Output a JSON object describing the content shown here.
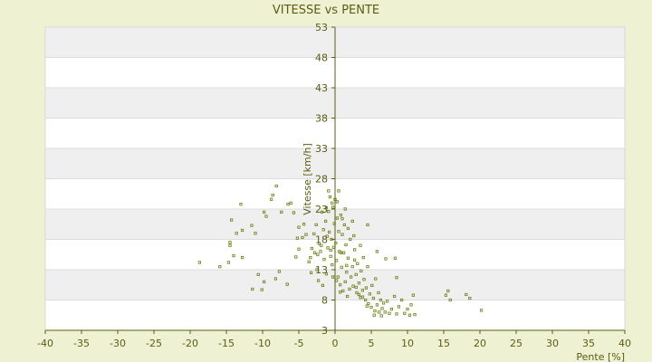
{
  "chart_data": {
    "type": "scatter",
    "title": "VITESSE vs PENTE",
    "xlabel": "Pente [%]",
    "ylabel": "Vitesse [km/h]",
    "xlim": [
      -40,
      40
    ],
    "ylim": [
      3,
      53
    ],
    "xticks": [
      -40,
      -35,
      -30,
      -25,
      -20,
      -15,
      -10,
      -5,
      0,
      5,
      10,
      15,
      20,
      25,
      30,
      35,
      40
    ],
    "yticks": [
      3,
      8,
      13,
      18,
      23,
      28,
      33,
      38,
      43,
      48,
      53
    ],
    "grid": "horizontal",
    "legend": "none",
    "colors": {
      "background": "#eef2d2",
      "band_light": "#ffffff",
      "band_dark": "#efefef",
      "marker": "#6b7d10",
      "axis": "#5c5c12"
    },
    "series": [
      {
        "points": [
          [
            -18.7,
            14.2
          ],
          [
            -15.9,
            13.5
          ],
          [
            -14.5,
            17.5
          ],
          [
            -14.7,
            14.2
          ],
          [
            -14.5,
            17.0
          ],
          [
            -14.3,
            21.2
          ],
          [
            -14.0,
            15.3
          ],
          [
            -13.6,
            19.0
          ],
          [
            -13.0,
            23.8
          ],
          [
            -12.8,
            15.0
          ],
          [
            -12.8,
            19.5
          ],
          [
            -11.5,
            20.3
          ],
          [
            -11.4,
            9.8
          ],
          [
            -11.0,
            19.0
          ],
          [
            -10.6,
            12.2
          ],
          [
            -9.8,
            11.0
          ],
          [
            -10.1,
            9.7
          ],
          [
            -9.8,
            22.5
          ],
          [
            -9.5,
            21.8
          ],
          [
            -8.8,
            24.6
          ],
          [
            -8.6,
            25.3
          ],
          [
            -8.1,
            26.8
          ],
          [
            -8.2,
            11.5
          ],
          [
            -7.7,
            12.7
          ],
          [
            -7.4,
            22.5
          ],
          [
            -6.6,
            10.6
          ],
          [
            -6.5,
            23.8
          ],
          [
            -6.1,
            24.0
          ],
          [
            -5.7,
            22.4
          ],
          [
            -5.4,
            15.1
          ],
          [
            -5.2,
            18.2
          ],
          [
            -5.0,
            20.0
          ],
          [
            -5.0,
            16.4
          ],
          [
            -4.5,
            18.3
          ],
          [
            -4.3,
            20.5
          ],
          [
            -4.0,
            18.8
          ],
          [
            -3.6,
            14.3
          ],
          [
            -3.4,
            15.0
          ],
          [
            -3.2,
            16.5
          ],
          [
            -2.9,
            18.9
          ],
          [
            -2.6,
            20.4
          ],
          [
            -2.5,
            13.0
          ],
          [
            -2.4,
            15.5
          ],
          [
            -2.2,
            17.3
          ],
          [
            -2.0,
            16.0
          ],
          [
            -1.8,
            22.5
          ],
          [
            -1.6,
            19.6
          ],
          [
            -1.5,
            14.7
          ],
          [
            -1.3,
            21.0
          ],
          [
            -1.2,
            12.3
          ],
          [
            -1.1,
            18.5
          ],
          [
            -1.0,
            16.6
          ],
          [
            -0.9,
            22.6
          ],
          [
            -0.8,
            19.2
          ],
          [
            -0.7,
            25.0
          ],
          [
            -0.6,
            15.2
          ],
          [
            -0.5,
            18.0
          ],
          [
            -0.4,
            13.8
          ],
          [
            -0.3,
            23.3
          ],
          [
            -0.2,
            16.7
          ],
          [
            -0.1,
            20.6
          ],
          [
            0.0,
            24.6
          ],
          [
            0.1,
            17.4
          ],
          [
            0.2,
            14.5
          ],
          [
            0.3,
            21.5
          ],
          [
            0.4,
            11.8
          ],
          [
            0.5,
            19.3
          ],
          [
            0.6,
            16.0
          ],
          [
            0.7,
            10.5
          ],
          [
            0.8,
            22.0
          ],
          [
            0.9,
            13.4
          ],
          [
            1.0,
            18.8
          ],
          [
            1.1,
            9.5
          ],
          [
            1.2,
            15.8
          ],
          [
            1.3,
            20.4
          ],
          [
            1.4,
            11.0
          ],
          [
            1.5,
            17.1
          ],
          [
            1.6,
            12.6
          ],
          [
            1.8,
            14.9
          ],
          [
            2.0,
            9.8
          ],
          [
            2.1,
            18.0
          ],
          [
            2.2,
            11.8
          ],
          [
            2.4,
            13.5
          ],
          [
            2.5,
            10.3
          ],
          [
            2.7,
            16.3
          ],
          [
            2.9,
            12.2
          ],
          [
            3.0,
            9.2
          ],
          [
            3.1,
            14.0
          ],
          [
            3.3,
            10.8
          ],
          [
            3.5,
            8.4
          ],
          [
            3.6,
            12.8
          ],
          [
            3.8,
            9.6
          ],
          [
            4.0,
            11.4
          ],
          [
            4.2,
            8.0
          ],
          [
            4.3,
            10.0
          ],
          [
            4.5,
            13.5
          ],
          [
            4.6,
            7.4
          ],
          [
            4.8,
            9.0
          ],
          [
            5.0,
            6.8
          ],
          [
            5.1,
            10.4
          ],
          [
            5.3,
            8.3
          ],
          [
            5.5,
            6.2
          ],
          [
            5.6,
            11.5
          ],
          [
            5.8,
            7.2
          ],
          [
            6.0,
            9.2
          ],
          [
            6.1,
            6.0
          ],
          [
            6.3,
            8.0
          ],
          [
            6.5,
            6.6
          ],
          [
            6.7,
            7.5
          ],
          [
            6.9,
            6.0
          ],
          [
            7.2,
            7.8
          ],
          [
            7.5,
            5.8
          ],
          [
            7.8,
            6.5
          ],
          [
            8.2,
            8.6
          ],
          [
            8.5,
            5.7
          ],
          [
            8.8,
            6.9
          ],
          [
            9.2,
            8.0
          ],
          [
            9.6,
            5.8
          ],
          [
            10.0,
            6.5
          ],
          [
            10.3,
            5.5
          ],
          [
            10.5,
            7.2
          ],
          [
            10.8,
            8.8
          ],
          [
            11.0,
            5.6
          ],
          [
            8.3,
            14.9
          ],
          [
            8.5,
            11.7
          ],
          [
            7.0,
            14.8
          ],
          [
            5.8,
            16.0
          ],
          [
            4.5,
            20.4
          ],
          [
            3.9,
            15.0
          ],
          [
            3.5,
            17.0
          ],
          [
            2.6,
            18.6
          ],
          [
            2.4,
            21.0
          ],
          [
            1.8,
            19.8
          ],
          [
            1.4,
            23.0
          ],
          [
            1.0,
            21.4
          ],
          [
            0.5,
            26.0
          ],
          [
            0.3,
            24.2
          ],
          [
            -0.4,
            24.0
          ],
          [
            -0.9,
            26.0
          ],
          [
            -1.2,
            23.2
          ],
          [
            15.3,
            8.8
          ],
          [
            15.6,
            9.5
          ],
          [
            15.9,
            8.0
          ],
          [
            18.1,
            8.9
          ],
          [
            18.6,
            8.3
          ],
          [
            20.2,
            6.3
          ],
          [
            3.3,
            8.9
          ],
          [
            3.8,
            8.5
          ],
          [
            4.4,
            7.0
          ],
          [
            5.4,
            5.5
          ],
          [
            6.4,
            5.4
          ],
          [
            2.9,
            10.1
          ],
          [
            1.7,
            8.6
          ],
          [
            0.7,
            9.3
          ],
          [
            0.2,
            11.2
          ],
          [
            -0.3,
            11.8
          ],
          [
            -1.7,
            10.4
          ],
          [
            -2.3,
            11.2
          ],
          [
            -3.3,
            12.5
          ],
          [
            1.6,
            13.7
          ],
          [
            2.7,
            14.6
          ],
          [
            0.8,
            15.8
          ],
          [
            -0.6,
            16.2
          ],
          [
            -1.9,
            17.0
          ],
          [
            -2.8,
            15.8
          ]
        ]
      }
    ]
  }
}
